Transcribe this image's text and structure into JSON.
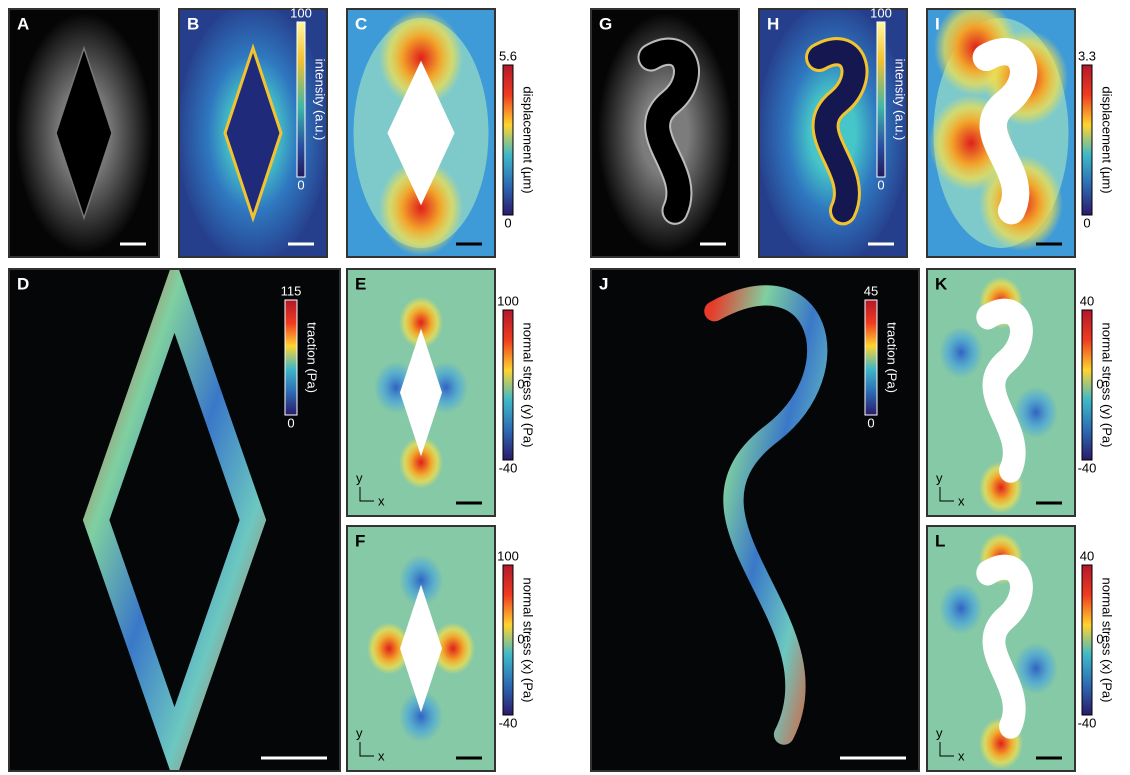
{
  "panels": [
    {
      "label": "A"
    },
    {
      "label": "B",
      "colorbar": {
        "title": "intensity (a.u.)",
        "ticks": [
          "100",
          "0"
        ]
      }
    },
    {
      "label": "C",
      "colorbar": {
        "title": "displacement (µm)",
        "ticks": [
          "5.6",
          "0"
        ]
      }
    },
    {
      "label": "D",
      "colorbar": {
        "title": "traction (Pa)",
        "ticks": [
          "115",
          "0"
        ]
      }
    },
    {
      "label": "E",
      "colorbar": {
        "title": "normal stress (y) (Pa)",
        "ticks": [
          "100",
          "0",
          "-40"
        ]
      },
      "axes": [
        "y",
        "x"
      ]
    },
    {
      "label": "F",
      "colorbar": {
        "title": "normal stress (x) (Pa)",
        "ticks": [
          "100",
          "0",
          "-40"
        ]
      },
      "axes": [
        "y",
        "x"
      ]
    },
    {
      "label": "G"
    },
    {
      "label": "H",
      "colorbar": {
        "title": "intensity (a.u.)",
        "ticks": [
          "100",
          "0"
        ]
      }
    },
    {
      "label": "I",
      "colorbar": {
        "title": "displacement (µm)",
        "ticks": [
          "3.3",
          "0"
        ]
      }
    },
    {
      "label": "J",
      "colorbar": {
        "title": "traction (Pa)",
        "ticks": [
          "45",
          "0"
        ]
      }
    },
    {
      "label": "K",
      "colorbar": {
        "title": "normal stress (y) (Pa)",
        "ticks": [
          "40",
          "0",
          "-40"
        ]
      },
      "axes": [
        "y",
        "x"
      ]
    },
    {
      "label": "L",
      "colorbar": {
        "title": "normal stress (x) (Pa)",
        "ticks": [
          "40",
          "0",
          "-40"
        ]
      },
      "axes": [
        "y",
        "x"
      ]
    }
  ]
}
